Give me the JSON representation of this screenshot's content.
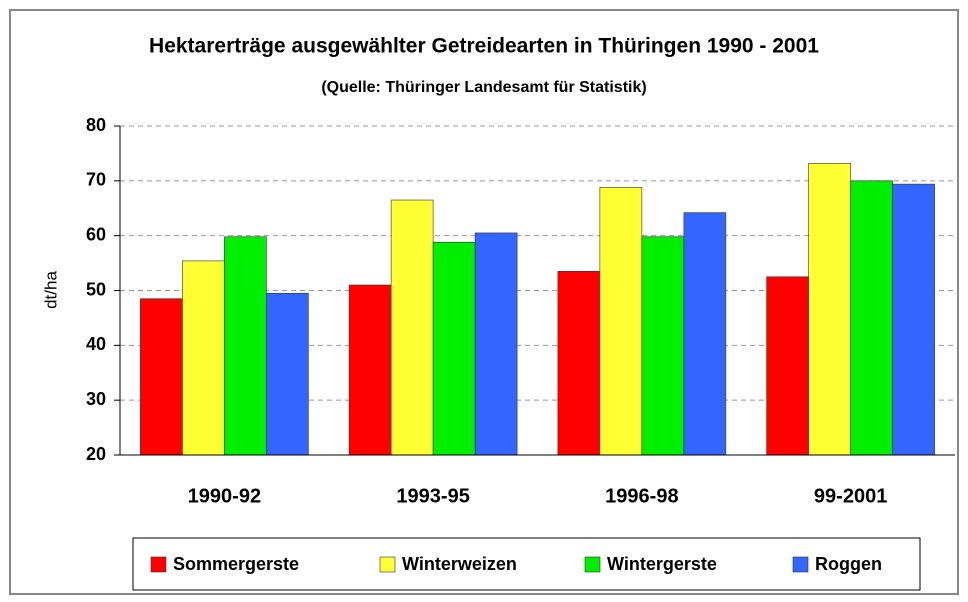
{
  "chart_data": {
    "type": "bar",
    "title": "Hektarerträge ausgewählter Getreidearten in Thüringen 1990 - 2001",
    "subtitle": "(Quelle: Thüringer Landesamt für Statistik)",
    "y_label": "dt/ha",
    "categories": [
      "1990-92",
      "1993-95",
      "1996-98",
      "99-2001"
    ],
    "series": [
      {
        "name": "Sommergerste",
        "color": "#ff0000",
        "values": [
          48.5,
          51,
          53.5,
          52.5
        ]
      },
      {
        "name": "Winterweizen",
        "color": "#ffff33",
        "values": [
          55.4,
          66.5,
          68.8,
          73.2
        ]
      },
      {
        "name": "Wintergerste",
        "color": "#00ee00",
        "values": [
          59.8,
          58.8,
          59.8,
          70
        ]
      },
      {
        "name": "Roggen",
        "color": "#3366ff",
        "values": [
          49.5,
          60.5,
          64.2,
          69.4
        ]
      }
    ],
    "ylim": [
      20,
      80
    ],
    "yticks": [
      20,
      30,
      40,
      50,
      60,
      70,
      80
    ],
    "grid": true
  }
}
